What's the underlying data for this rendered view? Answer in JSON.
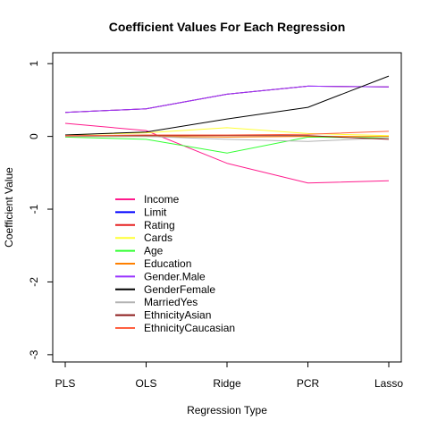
{
  "chart_data": {
    "type": "line",
    "title": "Coefficient Values For Each Regression",
    "xlabel": "Regression Type",
    "ylabel": "Coefficient Value",
    "categories": [
      "PLS",
      "OLS",
      "Ridge",
      "PCR",
      "Lasso"
    ],
    "ylim": [
      -3.1,
      1.15
    ],
    "yticks": [
      1,
      0,
      -1,
      -2,
      -3
    ],
    "grid": false,
    "legend_position": "bottom-left",
    "series": [
      {
        "name": "Income",
        "color": "#ff1a8c",
        "values": [
          0.18,
          0.08,
          -0.37,
          -0.64,
          -0.61
        ]
      },
      {
        "name": "Limit",
        "color": "#0000ff",
        "values": [
          0.33,
          0.38,
          0.58,
          0.69,
          0.68
        ]
      },
      {
        "name": "Rating",
        "color": "#e62020",
        "values": [
          0.33,
          0.38,
          0.58,
          0.69,
          0.68
        ]
      },
      {
        "name": "Cards",
        "color": "#ffff33",
        "values": [
          0.02,
          0.05,
          0.12,
          0.04,
          0.01
        ]
      },
      {
        "name": "Age",
        "color": "#33ff33",
        "values": [
          -0.01,
          -0.04,
          -0.23,
          -0.01,
          -0.02
        ]
      },
      {
        "name": "Education",
        "color": "#ff8000",
        "values": [
          0.0,
          0.0,
          -0.01,
          0.0,
          0.0
        ]
      },
      {
        "name": "Gender.Male",
        "color": "#9933ff",
        "values": [
          0.33,
          0.38,
          0.58,
          0.69,
          0.68
        ]
      },
      {
        "name": "GenderFemale",
        "color": "#000000",
        "values": [
          0.02,
          0.06,
          0.24,
          0.4,
          0.83
        ]
      },
      {
        "name": "MarriedYes",
        "color": "#b3b3b3",
        "values": [
          0.0,
          0.0,
          -0.04,
          -0.07,
          -0.02
        ]
      },
      {
        "name": "EthnicityAsian",
        "color": "#8c1a1a",
        "values": [
          0.01,
          0.01,
          0.01,
          0.01,
          -0.04
        ]
      },
      {
        "name": "EthnicityCaucasian",
        "color": "#ff6040",
        "values": [
          0.01,
          0.02,
          0.02,
          0.03,
          0.07
        ]
      }
    ]
  }
}
